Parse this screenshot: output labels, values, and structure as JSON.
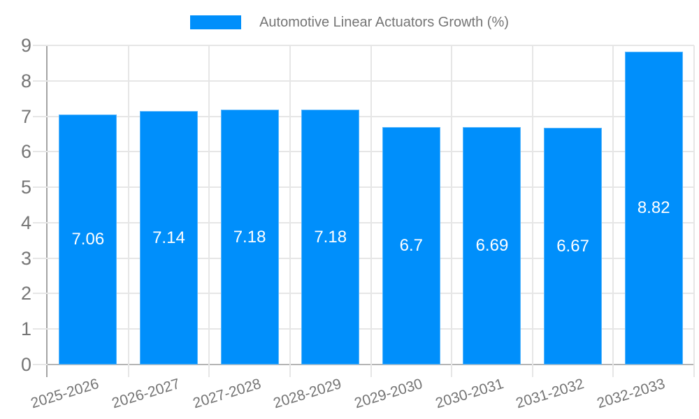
{
  "legend": {
    "label": "Automotive Linear Actuators Growth (%)"
  },
  "chart_data": {
    "type": "bar",
    "title": "Automotive Linear Actuators Growth (%)",
    "categories": [
      "2025-2026",
      "2026-2027",
      "2027-2028",
      "2028-2029",
      "2029-2030",
      "2030-2031",
      "2031-2032",
      "2032-2033"
    ],
    "values": [
      7.06,
      7.14,
      7.18,
      7.18,
      6.7,
      6.69,
      6.67,
      8.82
    ],
    "value_labels": [
      "7.06",
      "7.14",
      "7.18",
      "7.18",
      "6.7",
      "6.69",
      "6.67",
      "8.82"
    ],
    "xlabel": "",
    "ylabel": "",
    "ylim": [
      0,
      9
    ],
    "y_ticks": [
      0,
      1,
      2,
      3,
      4,
      5,
      6,
      7,
      8,
      9
    ],
    "grid": true,
    "legend_position": "top",
    "colors": {
      "bar": "#008FFB",
      "grid": "#e6e6e6",
      "axis_y": "#a3a3a3",
      "axis_x": "#b5b5b5",
      "tick_text": "#757575",
      "bar_label": "#ffffff"
    }
  }
}
